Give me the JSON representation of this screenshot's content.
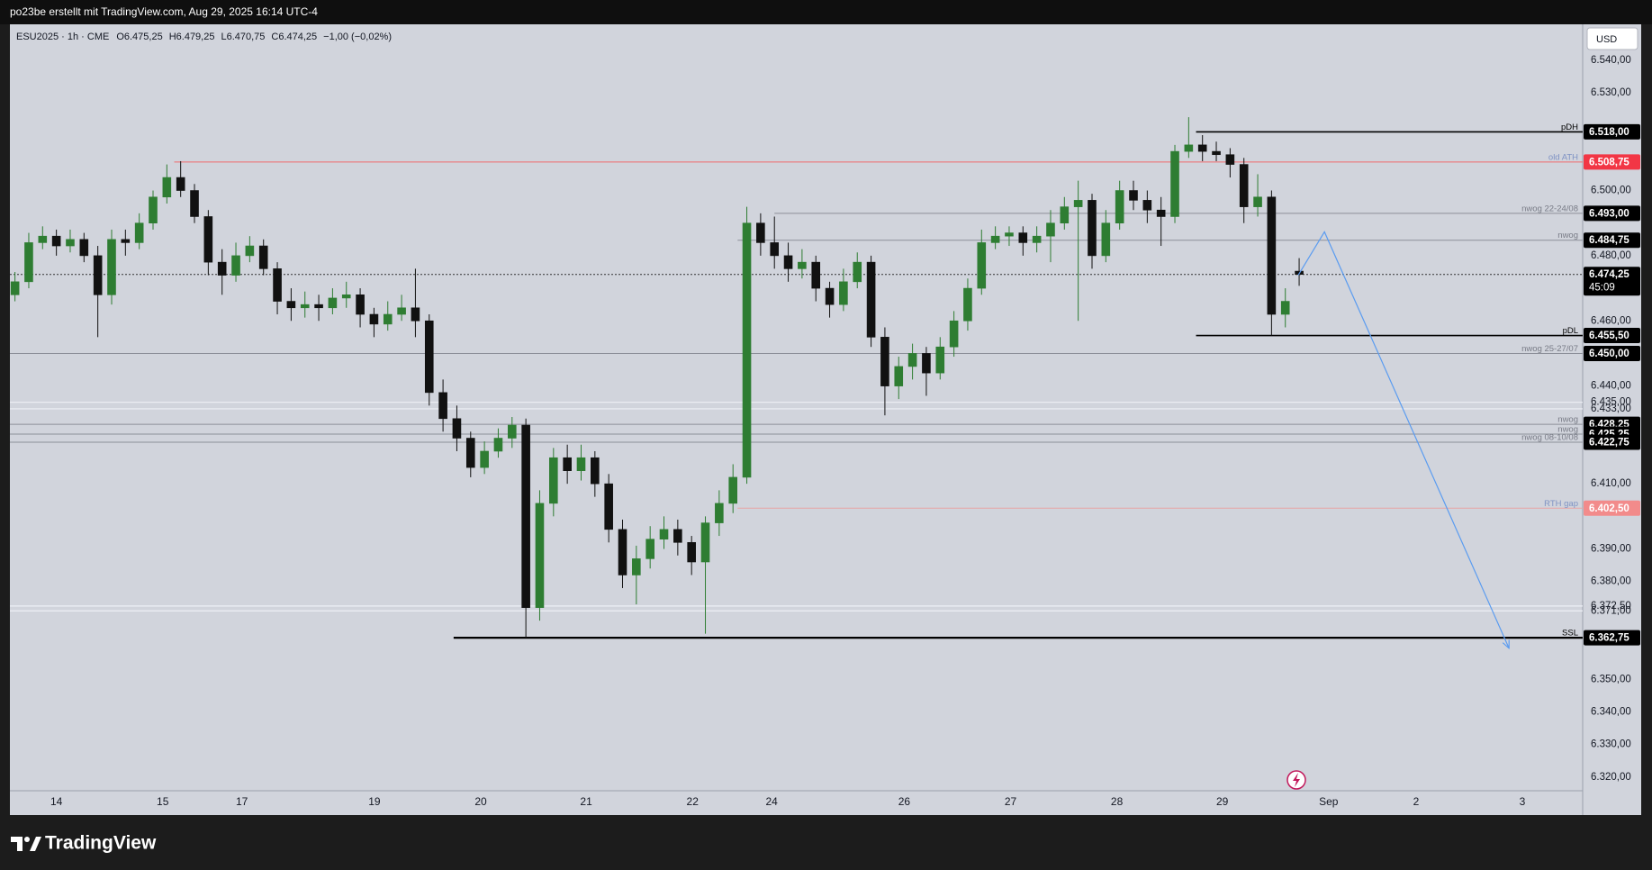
{
  "top_bar": "po23be erstellt mit TradingView.com, Aug 29, 2025 16:14 UTC-4",
  "header": {
    "symbol": "ESU2025 · 1h · CME",
    "quote": [
      "O6.475,25",
      "H6.479,25",
      "L6.470,75",
      "C6.474,25",
      "−1,00 (−0,02%)"
    ]
  },
  "currency": "USD",
  "brand": "TradingView",
  "chart_data": {
    "type": "candlestick",
    "up_color": "#2e7d32",
    "down_color": "#111111",
    "grid": false,
    "xlim": [
      -10.1,
      331.6
    ],
    "ylim": [
      6315.8,
      6551
    ],
    "xticks": [
      {
        "value": 0,
        "label": "14"
      },
      {
        "value": 23.1,
        "label": "15"
      },
      {
        "value": 40.3,
        "label": "17"
      },
      {
        "value": 69.1,
        "label": "19"
      },
      {
        "value": 92.2,
        "label": "20"
      },
      {
        "value": 115.1,
        "label": "21"
      },
      {
        "value": 138.2,
        "label": "22"
      },
      {
        "value": 155.4,
        "label": "24"
      },
      {
        "value": 184.2,
        "label": "26"
      },
      {
        "value": 207.3,
        "label": "27"
      },
      {
        "value": 230.4,
        "label": "28"
      },
      {
        "value": 253.3,
        "label": "29"
      },
      {
        "value": 276.4,
        "label": "Sep"
      },
      {
        "value": 295.4,
        "label": "2"
      },
      {
        "value": 318.5,
        "label": "3"
      }
    ],
    "yticks": [
      {
        "value": 6540,
        "label": "6.540,00"
      },
      {
        "value": 6530,
        "label": "6.530,00"
      },
      {
        "value": 6500,
        "label": "6.500,00"
      },
      {
        "value": 6480,
        "label": "6.480,00"
      },
      {
        "value": 6460,
        "label": "6.460,00"
      },
      {
        "value": 6440,
        "label": "6.440,00"
      },
      {
        "value": 6410,
        "label": "6.410,00"
      },
      {
        "value": 6390,
        "label": "6.390,00"
      },
      {
        "value": 6380,
        "label": "6.380,00"
      },
      {
        "value": 6350,
        "label": "6.350,00"
      },
      {
        "value": 6340,
        "label": "6.340,00"
      },
      {
        "value": 6330,
        "label": "6.330,00"
      },
      {
        "value": 6320,
        "label": "6.320,00"
      }
    ],
    "x": [
      -9,
      -6,
      -3,
      0,
      3,
      6,
      9,
      12,
      15,
      18,
      21,
      24,
      27,
      30,
      33,
      36,
      39,
      42,
      45,
      48,
      51,
      54,
      57,
      60,
      63,
      66,
      69,
      72,
      75,
      78,
      81,
      84,
      87,
      90,
      93,
      96,
      99,
      102,
      105,
      108,
      111,
      114,
      117,
      120,
      123,
      126,
      129,
      132,
      135,
      138,
      141,
      144,
      147,
      150,
      153,
      156,
      159,
      162,
      165,
      168,
      171,
      174,
      177,
      180,
      183,
      186,
      189,
      192,
      195,
      198,
      201,
      204,
      207,
      210,
      213,
      216,
      219,
      222,
      225,
      228,
      231,
      234,
      237,
      240,
      243,
      246,
      249,
      252,
      255,
      258,
      261,
      264,
      267,
      270
    ],
    "open": [
      6468,
      6472,
      6484,
      6486,
      6483,
      6485,
      6480,
      6468,
      6485,
      6484,
      6490,
      6498,
      6504,
      6500,
      6492,
      6478,
      6474,
      6480,
      6483,
      6476,
      6466,
      6464,
      6465,
      6464,
      6467,
      6468,
      6462,
      6459,
      6462,
      6464,
      6460,
      6438,
      6430,
      6424,
      6415,
      6420,
      6424,
      6428,
      6372,
      6404,
      6418,
      6414,
      6418,
      6410,
      6396,
      6382,
      6387,
      6393,
      6396,
      6392,
      6386,
      6398,
      6404,
      6412,
      6490,
      6484,
      6480,
      6476,
      6478,
      6470,
      6465,
      6472,
      6478,
      6455,
      6440,
      6446,
      6450,
      6444,
      6452,
      6460,
      6470,
      6484,
      6486,
      6487,
      6484,
      6486,
      6490,
      6495,
      6497,
      6480,
      6490,
      6500,
      6497,
      6494,
      6492,
      6512,
      6514,
      6512,
      6511,
      6508,
      6495,
      6498,
      6462,
      6475.25
    ],
    "high": [
      6475,
      6487,
      6489,
      6488,
      6488,
      6487,
      6483,
      6488,
      6488,
      6493,
      6500,
      6508,
      6509,
      6502,
      6494,
      6482,
      6484,
      6486,
      6485,
      6478,
      6470,
      6469,
      6468,
      6470,
      6472,
      6470,
      6464,
      6466,
      6468,
      6476,
      6462,
      6442,
      6434,
      6426,
      6423,
      6427,
      6430.5,
      6430,
      6408,
      6421,
      6422,
      6422,
      6420,
      6413,
      6399,
      6391,
      6397,
      6400,
      6399,
      6394,
      6400,
      6408,
      6416,
      6495,
      6493,
      6492,
      6484,
      6482,
      6480,
      6472,
      6476,
      6481,
      6480,
      6458,
      6449,
      6453,
      6452,
      6455,
      6463,
      6473,
      6488,
      6489,
      6489,
      6489,
      6489,
      6494,
      6498,
      6503,
      6499,
      6494,
      6503,
      6503,
      6500,
      6498,
      6514,
      6522.5,
      6517,
      6515,
      6513,
      6510,
      6505,
      6500,
      6470,
      6479.25
    ],
    "low": [
      6466,
      6470,
      6482,
      6480,
      6481,
      6478,
      6455,
      6465,
      6480,
      6482,
      6488,
      6496,
      6498,
      6490,
      6474,
      6468,
      6472,
      6478,
      6474,
      6462,
      6460,
      6461,
      6460,
      6462,
      6464,
      6458,
      6455,
      6457,
      6460,
      6455,
      6434,
      6426,
      6420,
      6412,
      6413,
      6418,
      6421,
      6362.75,
      6368,
      6400,
      6410,
      6411,
      6406,
      6392,
      6378,
      6373,
      6384,
      6390,
      6388,
      6382,
      6364,
      6394,
      6401,
      6410,
      6480,
      6476,
      6472,
      6473,
      6466,
      6461,
      6463,
      6470,
      6452,
      6431,
      6436,
      6442,
      6437,
      6442,
      6449,
      6457,
      6468,
      6482,
      6483,
      6480,
      6481,
      6478,
      6488,
      6460,
      6476,
      6478,
      6488,
      6494,
      6490,
      6483,
      6490,
      6510,
      6509,
      6509,
      6504,
      6490,
      6492,
      6455.5,
      6458,
      6470.75
    ],
    "close": [
      6472,
      6484,
      6486,
      6483,
      6485,
      6480,
      6468,
      6485,
      6484,
      6490,
      6498,
      6504,
      6500,
      6492,
      6478,
      6474,
      6480,
      6483,
      6476,
      6466,
      6464,
      6465,
      6464,
      6467,
      6468,
      6462,
      6459,
      6462,
      6464,
      6460,
      6438,
      6430,
      6424,
      6415,
      6420,
      6424,
      6428,
      6372,
      6404,
      6418,
      6414,
      6418,
      6410,
      6396,
      6382,
      6387,
      6393,
      6396,
      6392,
      6386,
      6398,
      6404,
      6412,
      6490,
      6484,
      6480,
      6476,
      6478,
      6470,
      6465,
      6472,
      6478,
      6455,
      6440,
      6446,
      6450,
      6444,
      6452,
      6460,
      6470,
      6484,
      6486,
      6487,
      6484,
      6486,
      6490,
      6495,
      6497,
      6480,
      6490,
      6500,
      6497,
      6494,
      6492,
      6512,
      6514,
      6512,
      6511,
      6508,
      6495,
      6498,
      6462,
      6466,
      6474.25
    ],
    "levels": [
      {
        "value": 6518,
        "label": "6.518,00",
        "name": "pDH",
        "x0": 247.6,
        "color": "#000000",
        "tag": "#000000",
        "name_color": "#000000",
        "style": "solid"
      },
      {
        "value": 6508.75,
        "label": "6.508,75",
        "name": "old ATH",
        "x0": 25.6,
        "color": "#ef6b6b",
        "tag": "#f23645",
        "name_color": "#7f93c4",
        "style": "thin"
      },
      {
        "value": 6493,
        "label": "6.493,00",
        "name": "nwog 22-24/08",
        "x0": 156,
        "color": "#8c8f99",
        "tag": "#000000",
        "name_color": "#787b86",
        "style": "thin"
      },
      {
        "value": 6484.75,
        "label": "6.484,75",
        "name": "nwog",
        "x0": 148,
        "color": "#8c8f99",
        "tag": "#000000",
        "name_color": "#787b86",
        "style": "thin"
      },
      {
        "value": 6474.25,
        "label": "6.474,25",
        "countdown": "45:09",
        "color": "#333333",
        "tag": "#000000",
        "style": "dotted"
      },
      {
        "value": 6455.5,
        "label": "6.455,50",
        "name": "pDL",
        "x0": 247.6,
        "color": "#000000",
        "tag": "#000000",
        "name_color": "#000000",
        "style": "solid"
      },
      {
        "value": 6450,
        "label": "6.450,00",
        "name": "nwog 25-27/07",
        "color": "#8c8f99",
        "tag": "#000000",
        "name_color": "#787b86",
        "style": "thin"
      },
      {
        "value": 6435,
        "label": "6.435,00",
        "color": "#eef0f6",
        "style": "faint"
      },
      {
        "value": 6433,
        "label": "6.433,00",
        "color": "#eef0f6",
        "style": "faint"
      },
      {
        "value": 6428.25,
        "label": "6.428,25",
        "name": "nwog",
        "color": "#8c8f99",
        "tag": "#000000",
        "name_color": "#787b86",
        "style": "thin"
      },
      {
        "value": 6425.25,
        "label": "6.425,25",
        "name": "nwog",
        "color": "#8c8f99",
        "tag": "#000000",
        "name_color": "#787b86",
        "style": "thin"
      },
      {
        "value": 6422.75,
        "label": "6.422,75",
        "name": "nwog 08-10/08",
        "color": "#8c8f99",
        "tag": "#000000",
        "name_color": "#787b86",
        "style": "thin"
      },
      {
        "value": 6402.5,
        "label": "6.402,50",
        "name": "RTH gap",
        "x0": 148,
        "color": "#e7a3a3",
        "tag": "#f28b8b",
        "name_color": "#7f93c4",
        "style": "thin"
      },
      {
        "value": 6372.5,
        "label": "6.372,50",
        "color": "#eef0f6",
        "style": "faint"
      },
      {
        "value": 6371,
        "label": "6.371,00",
        "color": "#eef0f6",
        "style": "faint"
      },
      {
        "value": 6362.75,
        "label": "6.362,75",
        "name": "SSL",
        "x0": 86.3,
        "color": "#000000",
        "tag": "#000000",
        "name_color": "#000000",
        "style": "bold"
      }
    ],
    "projection": {
      "color": "#5b9cf0",
      "x": [
        269.8,
        275.5,
        315.6
      ],
      "y": [
        6474,
        6487.3,
        6359.5
      ]
    }
  }
}
